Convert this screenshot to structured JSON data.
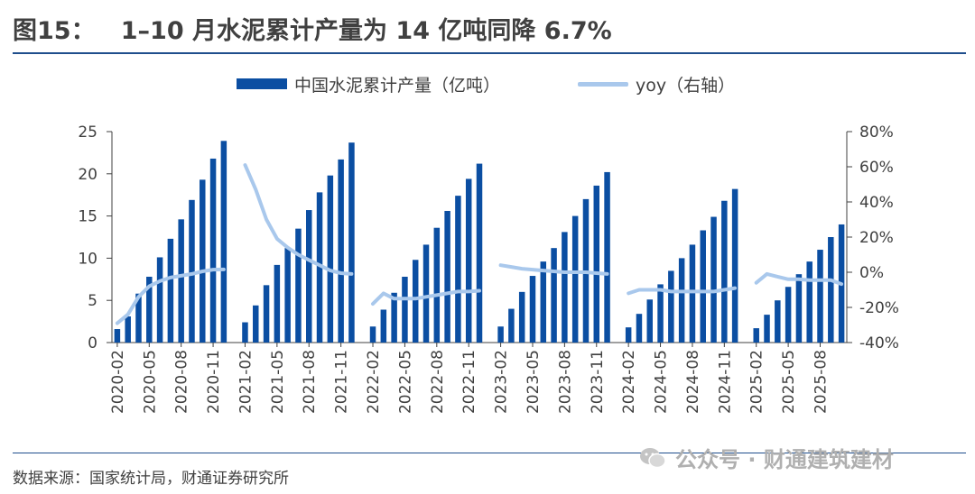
{
  "title": "图15：   1–10 月水泥累计产量为 14 亿吨同降 6.7%",
  "source": "数据来源：国家统计局，财通证券研究所",
  "watermark": "公众号 · 财通建筑建材",
  "colors": {
    "bar": "#0b4ea2",
    "line": "#a9c8ec",
    "rule": "#1f4e8c",
    "axis": "#404040"
  },
  "chart_data": {
    "type": "bar+line",
    "categories": [
      "2020-02",
      "2020-03",
      "2020-04",
      "2020-05",
      "2020-06",
      "2020-07",
      "2020-08",
      "2020-09",
      "2020-10",
      "2020-11",
      "2020-12",
      "2021-01",
      "2021-02",
      "2021-03",
      "2021-04",
      "2021-05",
      "2021-06",
      "2021-07",
      "2021-08",
      "2021-09",
      "2021-10",
      "2021-11",
      "2021-12",
      "2022-01",
      "2022-02",
      "2022-03",
      "2022-04",
      "2022-05",
      "2022-06",
      "2022-07",
      "2022-08",
      "2022-09",
      "2022-10",
      "2022-11",
      "2022-12",
      "2023-01",
      "2023-02",
      "2023-03",
      "2023-04",
      "2023-05",
      "2023-06",
      "2023-07",
      "2023-08",
      "2023-09",
      "2023-10",
      "2023-11",
      "2023-12",
      "2024-01",
      "2024-02",
      "2024-03",
      "2024-04",
      "2024-05",
      "2024-06",
      "2024-07",
      "2024-08",
      "2024-09",
      "2024-10",
      "2024-11",
      "2024-12",
      "2025-01",
      "2025-02",
      "2025-03",
      "2025-04",
      "2025-05",
      "2025-06",
      "2025-07",
      "2025-08",
      "2025-09",
      "2025-10"
    ],
    "xtick_labels": [
      "2020-02",
      "2020-05",
      "2020-08",
      "2020-11",
      "2021-02",
      "2021-05",
      "2021-08",
      "2021-11",
      "2022-02",
      "2022-05",
      "2022-08",
      "2022-11",
      "2023-02",
      "2023-05",
      "2023-08",
      "2023-11",
      "2024-02",
      "2024-05",
      "2024-08",
      "2024-11",
      "2025-02",
      "2025-05",
      "2025-08"
    ],
    "series": [
      {
        "name": "中国水泥累计产量（亿吨）",
        "type": "bar",
        "axis": "left",
        "values": [
          1.6,
          3.1,
          5.8,
          7.8,
          10.1,
          12.3,
          14.6,
          16.9,
          19.3,
          21.8,
          23.9,
          null,
          2.4,
          4.4,
          6.8,
          9.2,
          11.2,
          13.5,
          15.7,
          17.8,
          19.8,
          21.7,
          23.7,
          null,
          1.9,
          3.9,
          5.9,
          7.8,
          9.8,
          11.6,
          13.6,
          15.6,
          17.4,
          19.4,
          21.2,
          null,
          1.9,
          4.0,
          6.0,
          7.9,
          9.6,
          11.2,
          13.1,
          15.0,
          17.0,
          18.6,
          20.2,
          null,
          1.8,
          3.4,
          5.1,
          6.9,
          8.5,
          10.0,
          11.6,
          13.3,
          14.9,
          16.8,
          18.2,
          null,
          1.7,
          3.3,
          5.0,
          6.6,
          8.1,
          9.6,
          11.0,
          12.5,
          14.0
        ]
      },
      {
        "name": "yoy（右轴）",
        "type": "line",
        "axis": "right",
        "values": [
          -29.0,
          -24.0,
          -14.0,
          -8.0,
          -5.0,
          -3.0,
          -2.0,
          -1.0,
          0.5,
          1.5,
          1.6,
          null,
          61.0,
          47.0,
          30.0,
          19.0,
          14.0,
          10.0,
          7.0,
          4.0,
          1.0,
          -0.5,
          -1.0,
          null,
          -18.0,
          -12.0,
          -15.0,
          -15.0,
          -15.0,
          -14.0,
          -13.0,
          -12.0,
          -11.0,
          -11.0,
          -10.5,
          null,
          4.0,
          3.0,
          2.0,
          1.5,
          1.0,
          0.5,
          0.0,
          0.0,
          0.0,
          -0.5,
          -1.0,
          null,
          -12.0,
          -10.0,
          -10.0,
          -10.0,
          -11.0,
          -11.0,
          -11.0,
          -11.0,
          -11.0,
          -10.0,
          -9.0,
          null,
          -6.0,
          -1.0,
          -2.5,
          -4.0,
          -4.0,
          -4.5,
          -4.5,
          -4.5,
          -6.7
        ]
      }
    ],
    "left_axis": {
      "ylim": [
        0,
        25
      ],
      "ticks": [
        "0",
        "5",
        "10",
        "15",
        "20",
        "25"
      ]
    },
    "right_axis": {
      "ylim": [
        -40,
        80
      ],
      "ticks": [
        "-40%",
        "-20%",
        "0%",
        "20%",
        "40%",
        "60%",
        "80%"
      ]
    },
    "legend": {
      "position": "top-center",
      "items": [
        {
          "label": "中国水泥累计产量（亿吨）",
          "type": "bar"
        },
        {
          "label": "yoy（右轴）",
          "type": "line"
        }
      ]
    }
  }
}
